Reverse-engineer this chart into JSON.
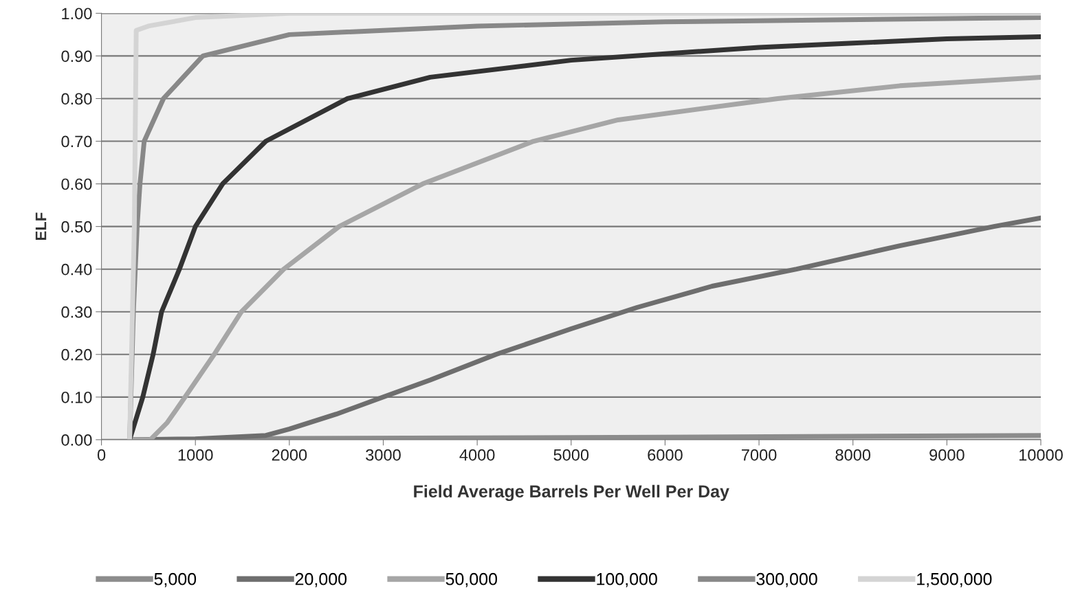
{
  "chart_data": {
    "type": "line",
    "xlabel": "Field Average Barrels Per Well Per Day",
    "ylabel": "ELF",
    "xlim": [
      0,
      10000
    ],
    "xticks": [
      0,
      1000,
      2000,
      3000,
      4000,
      5000,
      6000,
      7000,
      8000,
      9000,
      10000
    ],
    "ylim": [
      0,
      1
    ],
    "yticks": [
      {
        "value": 0,
        "label": "0.00"
      },
      {
        "value": 0.1,
        "label": "0.10"
      },
      {
        "value": 0.2,
        "label": "0.20"
      },
      {
        "value": 0.3,
        "label": "0.30"
      },
      {
        "value": 0.4,
        "label": "0.40"
      },
      {
        "value": 0.5,
        "label": "0.50"
      },
      {
        "value": 0.6,
        "label": "0.60"
      },
      {
        "value": 0.7,
        "label": "0.70"
      },
      {
        "value": 0.8,
        "label": "0.80"
      },
      {
        "value": 0.9,
        "label": "0.90"
      },
      {
        "value": 1,
        "label": "1.00"
      }
    ],
    "grid": "y",
    "legend": "bottom",
    "marker": "none",
    "line_style": "solid",
    "series": [
      {
        "name": "5,000",
        "color": "#8c8c8c",
        "x": [
          300,
          2000,
          5000,
          10000
        ],
        "values": [
          0,
          0.003,
          0.005,
          0.01
        ]
      },
      {
        "name": "20,000",
        "color": "#6e6e6e",
        "x": [
          300,
          1000,
          1750,
          2000,
          2500,
          3000,
          3500,
          4200,
          5000,
          5700,
          6500,
          7400,
          8500,
          9500,
          10000
        ],
        "values": [
          0,
          0.002,
          0.01,
          0.025,
          0.06,
          0.1,
          0.14,
          0.2,
          0.26,
          0.31,
          0.36,
          0.4,
          0.455,
          0.5,
          0.52
        ]
      },
      {
        "name": "50,000",
        "color": "#a6a6a6",
        "x": [
          300,
          520,
          700,
          890,
          1200,
          1490,
          1940,
          2530,
          3420,
          4600,
          5500,
          7200,
          8500,
          10000
        ],
        "values": [
          0,
          0,
          0.04,
          0.1,
          0.2,
          0.3,
          0.4,
          0.5,
          0.6,
          0.7,
          0.75,
          0.8,
          0.83,
          0.85
        ]
      },
      {
        "name": "100,000",
        "color": "#333333",
        "x": [
          300,
          440,
          550,
          640,
          830,
          1000,
          1290,
          1750,
          2620,
          3500,
          5000,
          6000,
          7000,
          8000,
          9000,
          10000
        ],
        "values": [
          0,
          0.1,
          0.2,
          0.3,
          0.4,
          0.5,
          0.6,
          0.7,
          0.8,
          0.85,
          0.89,
          0.905,
          0.92,
          0.93,
          0.94,
          0.945
        ]
      },
      {
        "name": "300,000",
        "color": "#888888",
        "x": [
          300,
          340,
          380,
          410,
          455,
          660,
          1080,
          2000,
          4000,
          6000,
          10000
        ],
        "values": [
          0,
          0.3,
          0.5,
          0.6,
          0.7,
          0.8,
          0.9,
          0.95,
          0.97,
          0.98,
          0.99
        ]
      },
      {
        "name": "1,500,000",
        "color": "#d4d4d4",
        "x": [
          300,
          350,
          370,
          500,
          1000,
          2000,
          10000
        ],
        "values": [
          0,
          0.5,
          0.96,
          0.97,
          0.99,
          1.0,
          1.0
        ]
      }
    ]
  }
}
